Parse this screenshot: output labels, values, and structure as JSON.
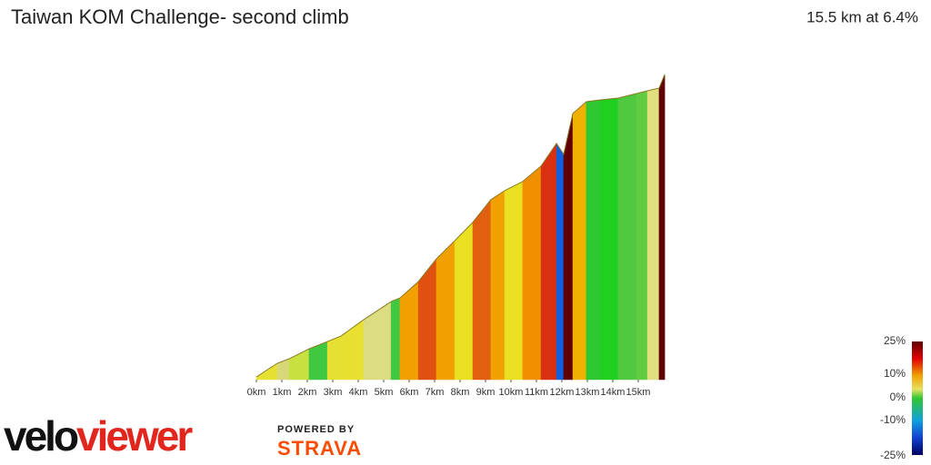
{
  "chart_data": {
    "type": "area",
    "title": "Taiwan KOM Challenge- second climb",
    "subtitle": "15.5 km at 6.4%",
    "x": [
      0,
      0.82,
      1.29,
      2.07,
      2.79,
      3.32,
      4.21,
      5.29,
      5.64,
      6.36,
      7.07,
      7.79,
      8.5,
      9.21,
      9.75,
      10.46,
      11.18,
      11.79,
      12.07,
      12.43,
      12.96,
      13.5,
      14.21,
      14.93,
      15.36,
      15.82,
      16.04
    ],
    "values": [
      9,
      54,
      69,
      102,
      126,
      144,
      198,
      258,
      270,
      324,
      399,
      459,
      520,
      595,
      625,
      655,
      706,
      781,
      745,
      880,
      919,
      925,
      931,
      946,
      955,
      964,
      1009
    ],
    "segment_colors": [
      "#e6e032",
      "#d8d878",
      "#c8e040",
      "#40c840",
      "#e6e032",
      "#e8e030",
      "#dcdc80",
      "#40c840",
      "#f0a000",
      "#e05010",
      "#f0a000",
      "#e8e020",
      "#e06010",
      "#f0a000",
      "#e8e020",
      "#f09000",
      "#d83010",
      "#1060e0",
      "#600000",
      "#f0b000",
      "#30c830",
      "#20d020",
      "#50c840",
      "#60cc40",
      "#e0e080",
      "#600000"
    ],
    "outline_color": "#8a7a20",
    "xlim": [
      0,
      16
    ],
    "ylim": [
      0,
      1000
    ],
    "xticks": [
      {
        "value": 0,
        "label": "0km"
      },
      {
        "value": 1,
        "label": "1km"
      },
      {
        "value": 2,
        "label": "2km"
      },
      {
        "value": 3,
        "label": "3km"
      },
      {
        "value": 4,
        "label": "4km"
      },
      {
        "value": 5,
        "label": "5km"
      },
      {
        "value": 6,
        "label": "6km"
      },
      {
        "value": 7,
        "label": "7km"
      },
      {
        "value": 8,
        "label": "8km"
      },
      {
        "value": 9,
        "label": "9km"
      },
      {
        "value": 10,
        "label": "10km"
      },
      {
        "value": 11,
        "label": "11km"
      },
      {
        "value": 12,
        "label": "12km"
      },
      {
        "value": 13,
        "label": "13km"
      },
      {
        "value": 14,
        "label": "14km"
      },
      {
        "value": 15,
        "label": "15km"
      }
    ],
    "gradient_scale": [
      {
        "value": 25,
        "label": "25%"
      },
      {
        "value": 10,
        "label": "10%"
      },
      {
        "value": 0,
        "label": "0%"
      },
      {
        "value": -10,
        "label": "-10%"
      },
      {
        "value": -25,
        "label": "-25%"
      }
    ]
  },
  "logo": {
    "velo": "velo",
    "viewer": "viewer",
    "powered": "POWERED BY",
    "strava": "STRAVA"
  }
}
